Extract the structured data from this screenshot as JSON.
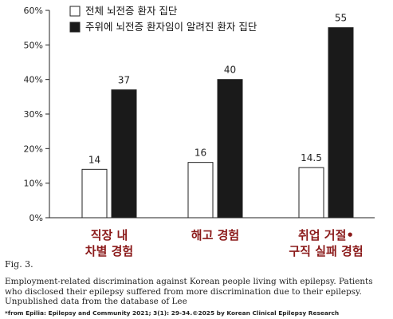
{
  "chart_data": {
    "type": "bar",
    "categories": [
      [
        "직장 내",
        "차별 경험"
      ],
      [
        "해고 경험"
      ],
      [
        "취업 거절•",
        "구직 실패 경험"
      ]
    ],
    "series": [
      {
        "name": "전체 뇌전증 환자 집단",
        "values": [
          14,
          16,
          14.5
        ],
        "labels": [
          "14",
          "16",
          "14.5"
        ],
        "color": "#ffffff"
      },
      {
        "name": "주위에 뇌전증 환자임이 알려진 환자 집단",
        "values": [
          37,
          40,
          55
        ],
        "labels": [
          "37",
          "40",
          "55"
        ],
        "color": "#1a1a1a"
      }
    ],
    "yticks": [
      "0%",
      "10%",
      "20%",
      "30%",
      "40%",
      "50%",
      "60%"
    ],
    "ylim": [
      0,
      60
    ],
    "grid": false,
    "legend_position": "top-left"
  },
  "figure": {
    "label": "Fig. 3.",
    "caption": "Employment-related discrimination against Korean people living with epilepsy. Patients who disclosed their epilepsy suffered from more discrimination due to their epilepsy. Unpublished data from the database of Lee",
    "source": "*from Epilia: Epilepsy and Community 2021; 3(1): 29-34.©2025 by Korean Clinical Epilepsy Research"
  }
}
